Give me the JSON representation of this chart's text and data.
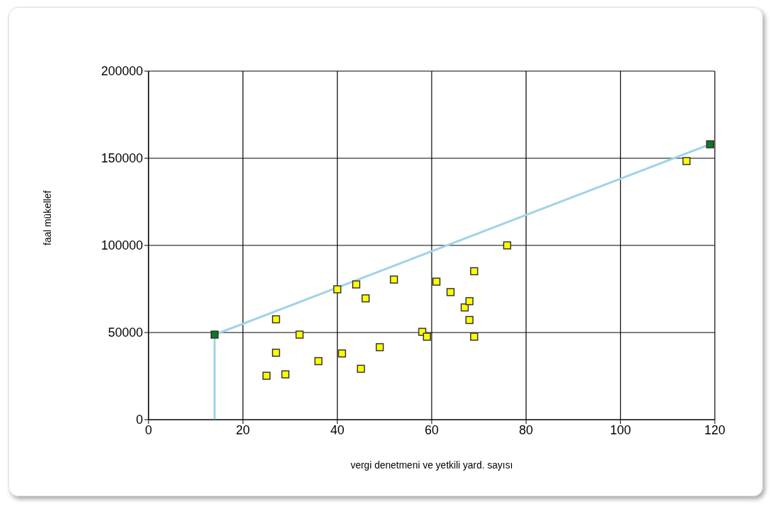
{
  "chart_data": {
    "type": "scatter",
    "xlabel": "vergi denetmeni ve yetkili yard. sayısı",
    "ylabel": "faal mükellef",
    "xlim": [
      0,
      120
    ],
    "xticks": [
      0,
      20,
      40,
      60,
      80,
      100,
      120
    ],
    "ylim": [
      0,
      200000
    ],
    "yticks": [
      0,
      50000,
      100000,
      150000,
      200000
    ],
    "grid": true,
    "legend": false,
    "series": [
      {
        "color": "#ffff00",
        "marker": "square",
        "x": [
          25,
          27,
          27,
          29,
          32,
          36,
          40,
          41,
          44,
          45,
          46,
          49,
          52,
          58,
          59,
          61,
          64,
          67,
          68,
          68,
          69,
          69,
          76,
          114
        ],
        "values": [
          25200,
          57600,
          38400,
          26000,
          48800,
          33600,
          74800,
          38000,
          77600,
          29200,
          69600,
          41600,
          80400,
          50400,
          47600,
          79200,
          73200,
          64400,
          68000,
          57200,
          85200,
          47600,
          100000,
          148400
        ]
      },
      {
        "type": "line",
        "color": "#9fd3e8",
        "marker": "none",
        "x": [
          14,
          14,
          119
        ],
        "values": [
          0,
          48800,
          158000
        ]
      },
      {
        "color": "#0a7a1e",
        "marker": "square",
        "x": [
          14,
          119
        ],
        "values": [
          48800,
          158000
        ]
      }
    ]
  }
}
